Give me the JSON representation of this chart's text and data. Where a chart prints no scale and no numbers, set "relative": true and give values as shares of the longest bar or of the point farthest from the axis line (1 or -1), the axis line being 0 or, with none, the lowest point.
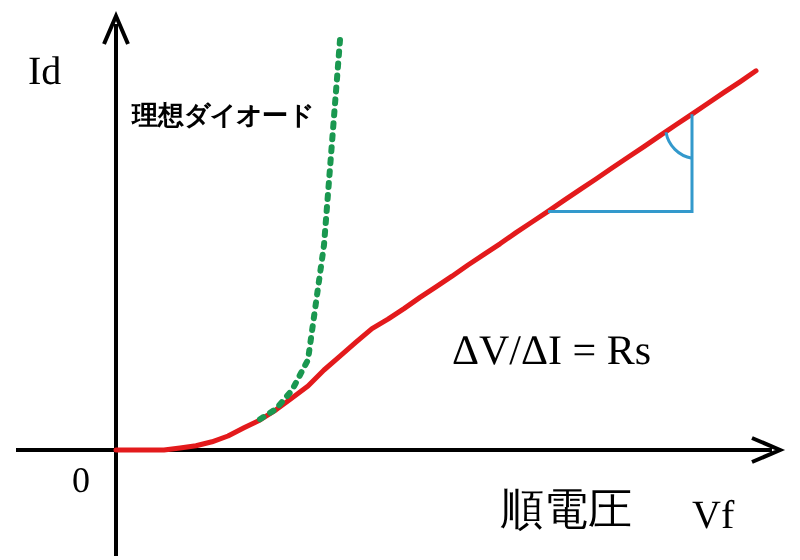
{
  "chart_data": {
    "type": "line",
    "relative": true,
    "xlabel": "Vf",
    "ylabel": "Id",
    "categories": [
      null,
      null,
      null,
      null,
      null,
      null,
      null,
      null,
      null,
      null,
      null,
      null,
      null,
      null,
      null,
      null,
      null,
      null,
      null,
      null,
      null,
      null,
      null,
      null,
      null,
      null,
      null,
      null,
      null,
      null,
      null,
      null,
      null,
      null,
      null,
      null,
      null,
      null,
      null,
      null,
      null
    ],
    "series": [
      {
        "color": "#e31a1c",
        "line_style": "solid",
        "values": [
          0,
          0,
          0,
          0,
          0.005,
          0.01,
          0.02,
          0.034,
          0.054,
          0.073,
          0.098,
          0.127,
          0.156,
          0.195,
          0.229,
          0.263,
          0.296,
          0.319,
          0.345,
          0.372,
          0.398,
          0.424,
          0.451,
          0.477,
          0.503,
          0.53,
          0.556,
          0.582,
          0.609,
          0.635,
          0.661,
          0.688,
          0.714,
          0.74,
          0.767,
          0.793,
          0.819,
          0.846,
          0.872,
          0.898,
          0.925
        ]
      },
      {
        "name": "理想ダイオード",
        "color": "#1a9850",
        "line_style": "dotted",
        "values": [
          null,
          null,
          null,
          null,
          null,
          null,
          null,
          null,
          null,
          0.075,
          0.1,
          0.146,
          0.22,
          0.5,
          1.0,
          null,
          null,
          null,
          null,
          null,
          null,
          null,
          null,
          null,
          null,
          null,
          null,
          null,
          null,
          null,
          null,
          null,
          null,
          null,
          null,
          null,
          null,
          null,
          null,
          null,
          null
        ]
      }
    ],
    "annotations": [
      "0",
      "順電圧",
      "ΔV/ΔI = Rs"
    ]
  }
}
